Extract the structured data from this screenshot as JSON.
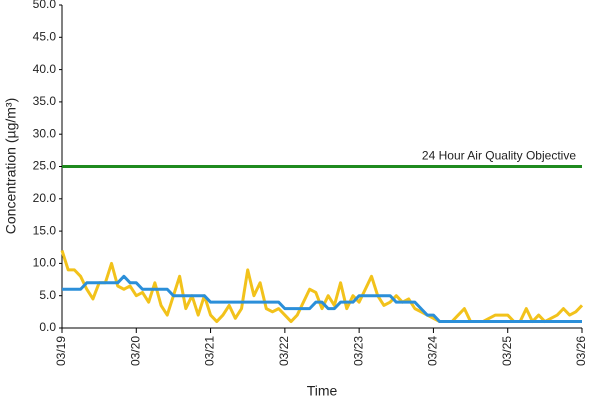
{
  "chart_data": {
    "type": "line",
    "y_label": "Concentration (µg/m³)",
    "x_label": "Time",
    "categories": [
      "03/19",
      null,
      null,
      null,
      null,
      null,
      null,
      null,
      null,
      null,
      null,
      null,
      "03/20",
      null,
      null,
      null,
      null,
      null,
      null,
      null,
      null,
      null,
      null,
      null,
      "03/21",
      null,
      null,
      null,
      null,
      null,
      null,
      null,
      null,
      null,
      null,
      null,
      "03/22",
      null,
      null,
      null,
      null,
      null,
      null,
      null,
      null,
      null,
      null,
      null,
      "03/23",
      null,
      null,
      null,
      null,
      null,
      null,
      null,
      null,
      null,
      null,
      null,
      "03/24",
      null,
      null,
      null,
      null,
      null,
      null,
      null,
      null,
      null,
      null,
      null,
      "03/25",
      null,
      null,
      null,
      null,
      null,
      null,
      null,
      null,
      null,
      null,
      null,
      "03/26"
    ],
    "series": [
      {
        "color": "#f2c21b",
        "values": [
          12,
          9,
          9,
          8,
          6,
          4.5,
          7,
          7,
          10,
          6.5,
          6,
          6.5,
          5,
          5.5,
          4,
          7,
          3.5,
          2,
          5,
          8,
          3,
          5,
          2,
          5,
          2,
          1,
          2,
          3.5,
          1.5,
          3,
          9,
          5,
          7,
          3,
          2.5,
          3,
          2,
          1,
          2,
          4,
          6,
          5.5,
          3,
          5,
          3.5,
          7,
          3,
          5,
          4,
          6,
          8,
          5,
          3.5,
          4,
          5,
          4,
          4.5,
          3,
          2.5,
          2,
          1.5,
          1,
          1,
          1,
          2,
          3,
          1,
          1,
          1,
          1.5,
          2,
          2,
          2,
          1,
          1,
          3,
          1,
          2,
          1,
          1.5,
          2,
          3,
          2,
          2.5,
          3.5
        ]
      },
      {
        "color": "#2b8fd9",
        "values": [
          6,
          6,
          6,
          6,
          7,
          7,
          7,
          7,
          7,
          7,
          8,
          7,
          7,
          6,
          6,
          6,
          6,
          6,
          5,
          5,
          5,
          5,
          5,
          5,
          4,
          4,
          4,
          4,
          4,
          4,
          4,
          4,
          4,
          4,
          4,
          4,
          3,
          3,
          3,
          3,
          3,
          4,
          4,
          3,
          3,
          4,
          4,
          4,
          5,
          5,
          5,
          5,
          5,
          5,
          4,
          4,
          4,
          4,
          3,
          2,
          2,
          1,
          1,
          1,
          1,
          1,
          1,
          1,
          1,
          1,
          1,
          1,
          1,
          1,
          1,
          1,
          1,
          1,
          1,
          1,
          1,
          1,
          1,
          1,
          1
        ]
      }
    ],
    "reference_line": {
      "value": 25,
      "label": "24 Hour Air Quality Objective",
      "color": "#1f8a1f"
    },
    "ylim": [
      0,
      50
    ],
    "yticks": [
      {
        "value": 0,
        "label": "0.0"
      },
      {
        "value": 5,
        "label": "5.0"
      },
      {
        "value": 10,
        "label": "10.0"
      },
      {
        "value": 15,
        "label": "15.0"
      },
      {
        "value": 20,
        "label": "20.0"
      },
      {
        "value": 25,
        "label": "25.0"
      },
      {
        "value": 30,
        "label": "30.0"
      },
      {
        "value": 35,
        "label": "35.0"
      },
      {
        "value": 40,
        "label": "40.0"
      },
      {
        "value": 45,
        "label": "45.0"
      },
      {
        "value": 50,
        "label": "50.0"
      }
    ],
    "grid": false
  }
}
